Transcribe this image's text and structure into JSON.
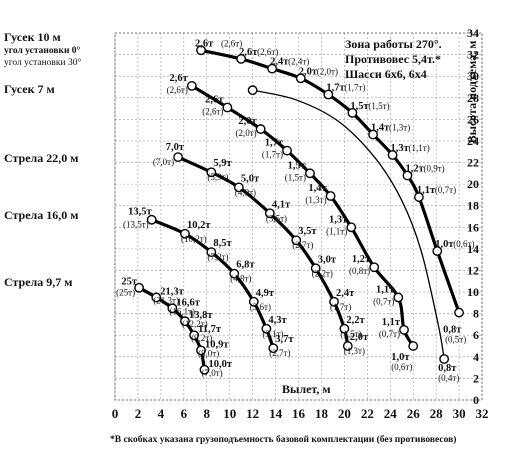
{
  "chart_data": {
    "type": "line",
    "info": {
      "line1": "Зона работы 270°.",
      "line2": "Противовес 5,4т.*",
      "line3": "Шасси 6х6, 6х4"
    },
    "xlabel": "Вылет, м",
    "ylabel": "Высота подъема, м",
    "footnote": "*В скобках указана грузоподъемность базовой комплектации (без противовесов)",
    "xlim": [
      0,
      32
    ],
    "ylim": [
      0,
      34
    ],
    "xticks": [
      "0",
      "2",
      "4",
      "6",
      "8",
      "10",
      "12",
      "14",
      "16",
      "18",
      "20",
      "22",
      "24",
      "26",
      "28",
      "30",
      "32"
    ],
    "yticks": [
      "0",
      "2",
      "4",
      "6",
      "8",
      "10",
      "12",
      "14",
      "16",
      "18",
      "20",
      "22",
      "24",
      "26",
      "28",
      "30",
      "32",
      "34"
    ],
    "grid": true,
    "left_labels": {
      "gusek10": "Гусек 10 м",
      "angle0": "угол установки 0°",
      "angle30": "угол установки 30°",
      "gusek7": "Гусек 7 м",
      "boom22": "Стрела 22,0 м",
      "boom16": "Стрела 16,0 м",
      "boom97": "Стрела 9,7 м"
    },
    "series": [
      {
        "name": "Гусек 10 м, угол установки 0°",
        "points": [
          {
            "x": 7.5,
            "y": 32.4,
            "load": "2,6т",
            "base": "(2,6т)"
          },
          {
            "x": 11.0,
            "y": 31.6,
            "load": "2,6т",
            "base": "(2,6т)"
          },
          {
            "x": 13.7,
            "y": 30.7,
            "load": "2,4т",
            "base": "(2,4т)"
          },
          {
            "x": 16.2,
            "y": 29.8,
            "load": "2,0т",
            "base": "(2,0т)"
          },
          {
            "x": 18.6,
            "y": 28.3,
            "load": "1,7т",
            "base": "(1,7т)"
          },
          {
            "x": 20.7,
            "y": 26.6,
            "load": "1,5т",
            "base": "(1,5т)"
          },
          {
            "x": 22.5,
            "y": 24.6,
            "load": "1,4т",
            "base": "(1,3т)"
          },
          {
            "x": 24.2,
            "y": 22.7,
            "load": "1,3т",
            "base": "(1,1т)"
          },
          {
            "x": 25.5,
            "y": 20.8,
            "load": "1,2т",
            "base": "(0,9т)"
          },
          {
            "x": 26.5,
            "y": 18.8,
            "load": "1,1т",
            "base": "(0,7т)"
          },
          {
            "x": 28.1,
            "y": 13.8,
            "load": "1,0т",
            "base": "(0,6т)"
          },
          {
            "x": 30.0,
            "y": 8.1,
            "load": "0,8т",
            "base": "(0,5т)"
          }
        ]
      },
      {
        "name": "Гусек 10 м, угол установки 30°",
        "points": [
          {
            "x": 12.0,
            "y": 28.7,
            "load": "",
            "base": ""
          },
          {
            "x": 15.8,
            "y": 27.8,
            "load": "",
            "base": ""
          },
          {
            "x": 19.5,
            "y": 25.8,
            "load": "",
            "base": ""
          },
          {
            "x": 22.7,
            "y": 22.4,
            "load": "",
            "base": ""
          },
          {
            "x": 25.0,
            "y": 18.5,
            "load": "",
            "base": ""
          },
          {
            "x": 26.7,
            "y": 13.8,
            "load": "",
            "base": ""
          },
          {
            "x": 28.2,
            "y": 6.9,
            "load": "",
            "base": ""
          },
          {
            "x": 28.7,
            "y": 3.8,
            "load": "0,8т",
            "base": "(0,4т)"
          }
        ]
      },
      {
        "name": "Гусек 7 м",
        "points": [
          {
            "x": 6.7,
            "y": 29.1,
            "load": "2,6т",
            "base": "(2,6т)"
          },
          {
            "x": 9.8,
            "y": 27.1,
            "load": "2,6т",
            "base": "(2,6т)"
          },
          {
            "x": 12.7,
            "y": 25.1,
            "load": "2,0т",
            "base": "(2,0т)"
          },
          {
            "x": 15.0,
            "y": 23.1,
            "load": "1,7т",
            "base": "(1,7т)"
          },
          {
            "x": 17.0,
            "y": 21.0,
            "load": "1,5т",
            "base": "(1,5т)"
          },
          {
            "x": 18.8,
            "y": 18.9,
            "load": "1,4т",
            "base": "(1,3т)"
          },
          {
            "x": 20.6,
            "y": 16.0,
            "load": "1,3т",
            "base": "(1,1т)"
          },
          {
            "x": 22.6,
            "y": 12.3,
            "load": "1,2т",
            "base": "(0,8т)"
          },
          {
            "x": 24.7,
            "y": 9.5,
            "load": "1,1т",
            "base": "(0,7т)"
          },
          {
            "x": 25.2,
            "y": 6.5,
            "load": "1,1т",
            "base": "(0,7т)"
          },
          {
            "x": 26.0,
            "y": 5.0,
            "load": "1,0т",
            "base": "(0,6т)"
          }
        ]
      },
      {
        "name": "Стрела 22,0 м",
        "points": [
          {
            "x": 5.5,
            "y": 22.5,
            "load": "7,0т",
            "base": "(7,0т)"
          },
          {
            "x": 8.4,
            "y": 21.1,
            "load": "5,9т",
            "base": "(5,9т)"
          },
          {
            "x": 10.8,
            "y": 19.7,
            "load": "5,0т",
            "base": "(4,9т)"
          },
          {
            "x": 13.5,
            "y": 17.3,
            "load": "4,1т",
            "base": "(3,5т)"
          },
          {
            "x": 15.8,
            "y": 14.8,
            "load": "3,5т",
            "base": "(2,7т)"
          },
          {
            "x": 17.5,
            "y": 12.2,
            "load": "3,0т",
            "base": "(2,2т)"
          },
          {
            "x": 19.1,
            "y": 9.1,
            "load": "2,4т",
            "base": "(1,7т)"
          },
          {
            "x": 20.0,
            "y": 6.6,
            "load": "2,2т",
            "base": "(1,5т)"
          },
          {
            "x": 20.3,
            "y": 5.0,
            "load": "2,0т",
            "base": "(1,3т)"
          }
        ]
      },
      {
        "name": "Стрела 16,0 м",
        "points": [
          {
            "x": 3.2,
            "y": 16.7,
            "load": "13,5т",
            "base": "(13,5т)"
          },
          {
            "x": 6.1,
            "y": 15.4,
            "load": "10,2т",
            "base": "(10,2т)"
          },
          {
            "x": 8.4,
            "y": 13.7,
            "load": "8,5т",
            "base": "(7,2т)"
          },
          {
            "x": 10.4,
            "y": 11.7,
            "load": "6,8т",
            "base": "(4,8т)"
          },
          {
            "x": 12.1,
            "y": 9.1,
            "load": "4,9т",
            "base": "(3,6т)"
          },
          {
            "x": 13.2,
            "y": 6.6,
            "load": "4,3т",
            "base": "(3,1т)"
          },
          {
            "x": 13.8,
            "y": 4.8,
            "load": "3,7т",
            "base": "(2,7т)"
          }
        ]
      },
      {
        "name": "Стрела 9,7 м",
        "points": [
          {
            "x": 2.1,
            "y": 10.4,
            "load": "25т",
            "base": "(25т)"
          },
          {
            "x": 3.6,
            "y": 9.5,
            "load": "21,3т",
            "base": "(21,3т)"
          },
          {
            "x": 5.0,
            "y": 8.5,
            "load": "16,6т",
            "base": "(16,1т)"
          },
          {
            "x": 6.1,
            "y": 7.3,
            "load": "13,8т",
            "base": "(12,2т)"
          },
          {
            "x": 6.9,
            "y": 6.0,
            "load": "11,7т",
            "base": "(9,2т)"
          },
          {
            "x": 7.5,
            "y": 4.6,
            "load": "10,9т",
            "base": "(8,0т)"
          },
          {
            "x": 7.8,
            "y": 2.8,
            "load": "10,0т",
            "base": "(7,0т)"
          }
        ]
      }
    ]
  }
}
